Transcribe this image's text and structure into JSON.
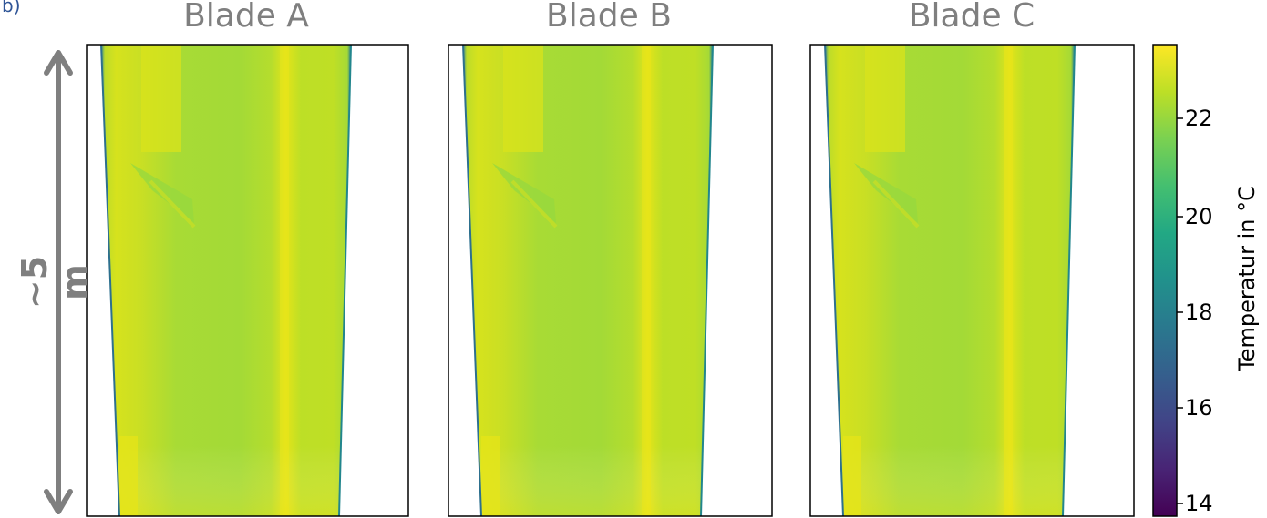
{
  "corner_label": "b) ",
  "dimension_label": "~5 m",
  "panels": [
    {
      "title": "Blade A"
    },
    {
      "title": "Blade B"
    },
    {
      "title": "Blade C"
    }
  ],
  "colorbar": {
    "label": "Temperatur in °C",
    "ticks": [
      "22",
      "20",
      "18",
      "16",
      "14"
    ],
    "colormap": "viridis",
    "range": [
      13.7,
      23.4
    ]
  },
  "colors": {
    "axis_frame": "#000000",
    "annotation_gray": "#7f7f7f",
    "corner_label_blue": "#2f5597"
  }
}
